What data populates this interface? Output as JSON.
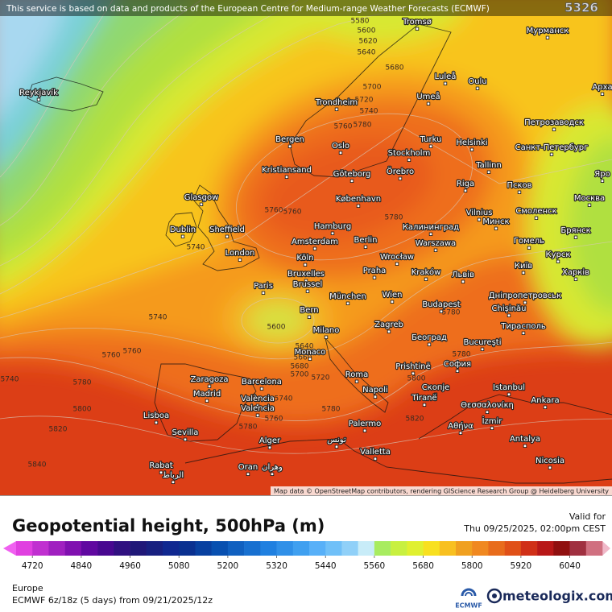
{
  "banner": "This service is based on data and products of the European Centre for Medium-range Weather Forecasts (ECMWF)",
  "corner_label": "5326",
  "map": {
    "cities": [
      "Reykjavík",
      "Tromsø",
      "Мурманск",
      "Luleå",
      "Oulu",
      "Арха",
      "Trondheim",
      "Umeå",
      "Петрозаводск",
      "Bergen",
      "Oslo",
      "Turku",
      "Helsinki",
      "Санкт-Петербург",
      "Stockholm",
      "Kristiansand",
      "Göteborg",
      "Örebro",
      "Tallinn",
      "Яро",
      "Riga",
      "Псков",
      "København",
      "Glasgow",
      "Москва",
      "Vilnius",
      "Смоленск",
      "Минск",
      "Hamburg",
      "Калининград",
      "Брянск",
      "Dublin",
      "Sheffield",
      "Amsterdam",
      "Berlin",
      "Гомель",
      "Warszawa",
      "London",
      "Wrocław",
      "Курск",
      "Київ",
      "Köln",
      "Bruxelles",
      "Brussel",
      "Praha",
      "Kraków",
      "Львів",
      "Харків",
      "Paris",
      "Дніпропетровськ",
      "München",
      "Wien",
      "Budapest",
      "Chişinău",
      "Bern",
      "Тирасполь",
      "Milano",
      "Zagreb",
      "Београд",
      "Bucureşti",
      "Monaco",
      "Prishtinë",
      "София",
      "Zaragoza",
      "Barcelona",
      "Roma",
      "Madrid",
      "Istanbul",
      "Скопје",
      "Napoli",
      "Ankara",
      "Tiranë",
      "Θεσσαλονίκη",
      "València",
      "Valencia",
      "Lisboa",
      "İzmir",
      "Αθήνα",
      "Sevilla",
      "Palermo",
      "تونس",
      "Antalya",
      "Alger",
      "Valletta",
      "Nicosia",
      "Rabat",
      "الرباط",
      "Oran",
      "وهران"
    ],
    "contour_labels": [
      5580,
      5600,
      5620,
      5640,
      5680,
      5700,
      5720,
      5740,
      5760,
      5780,
      5760,
      5760,
      5780,
      5740,
      5740,
      5760,
      5760,
      5740,
      5780,
      5800,
      5820,
      5840,
      5600,
      5640,
      5660,
      5680,
      5700,
      5720,
      5740,
      5760,
      5780,
      5780,
      5800,
      5820,
      5780,
      5780
    ]
  },
  "attribution": "Map data © OpenStreetMap contributors, rendering GIScience Research Group @ Heidelberg University",
  "title": "Geopotential height, 500hPa (m)",
  "valid": {
    "label": "Valid for",
    "time": "Thu 09/25/2025, 02:00pm CEST"
  },
  "colorbar": {
    "range": [
      4680,
      6120
    ],
    "ticks": [
      4720,
      4840,
      4960,
      5080,
      5200,
      5320,
      5440,
      5560,
      5680,
      5800,
      5920,
      6040
    ],
    "colors": [
      "#e040e0",
      "#c030d0",
      "#a020c0",
      "#8010b0",
      "#6008a0",
      "#480890",
      "#301080",
      "#201878",
      "#182080",
      "#102890",
      "#0a3090",
      "#0840a0",
      "#0850b0",
      "#1060c0",
      "#1870d0",
      "#2080e0",
      "#3090e8",
      "#40a0f0",
      "#58b0f8",
      "#70c0f8",
      "#90d0f8",
      "#c8ecf8",
      "#a8ec60",
      "#c8f040",
      "#e0f030",
      "#f8e020",
      "#f8c020",
      "#f0a020",
      "#f08820",
      "#e86c1c",
      "#e05018",
      "#d03018",
      "#b81818",
      "#901010",
      "#a03040",
      "#d07080"
    ]
  },
  "region": "Europe",
  "run": "ECMWF 6z/18z (5 days) from 09/21/2025/12z",
  "logos": [
    "ECMWF",
    "meteologix.com"
  ]
}
